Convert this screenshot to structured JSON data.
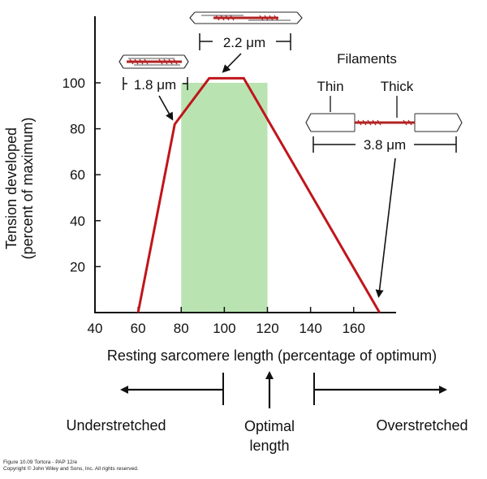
{
  "chart_data": {
    "type": "line",
    "xlabel": "Resting sarcomere length (percentage of optimum)",
    "ylabel_line1": "Tension developed",
    "ylabel_line2": "(percent of maximum)",
    "x_ticks": [
      "40",
      "60",
      "80",
      "100",
      "120",
      "140",
      "160"
    ],
    "y_ticks": [
      "20",
      "40",
      "60",
      "80",
      "100"
    ],
    "xlim": [
      40,
      175
    ],
    "ylim": [
      0,
      105
    ],
    "grid": false,
    "series": [
      {
        "x": [
          60,
          77,
          93,
          109,
          172
        ],
        "y": [
          0,
          82,
          102,
          102,
          0
        ],
        "color": "#c0151b"
      }
    ],
    "optimal_band": {
      "x": [
        80,
        120
      ],
      "color": "#b9e4b2"
    },
    "annotations": {
      "short": {
        "label": "1.8 μm",
        "point": [
          77,
          82
        ]
      },
      "optimal": {
        "label": "2.2 μm",
        "point": [
          101,
          102
        ]
      },
      "long": {
        "label": "3.8 μm",
        "point": [
          172,
          0
        ]
      },
      "filaments_title": "Filaments",
      "thin_label": "Thin",
      "thick_label": "Thick"
    },
    "regions": {
      "left": "Understretched",
      "middle_line1": "Optimal",
      "middle_line2": "length",
      "right": "Overstretched"
    }
  },
  "colors": {
    "curve": "#c0151b",
    "band": "#b9e4b2",
    "thick_filament": "#b22222",
    "ink": "#111111"
  },
  "footer": {
    "line1": "Figure 10.09  Tortora - PAP 12/e",
    "line2": "Copyright © John Wiley and Sons, Inc. All rights reserved."
  }
}
